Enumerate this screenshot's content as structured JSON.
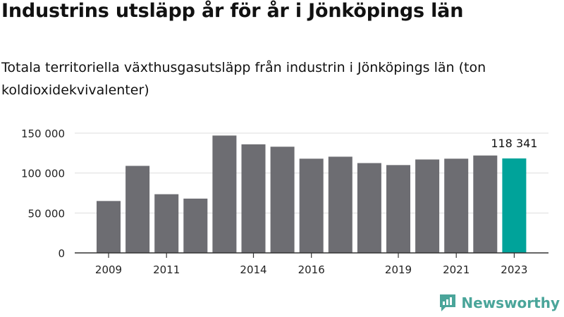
{
  "title": "Industrins utsläpp år för år i Jönköpings län",
  "subtitle": "Totala territoriella växthusgasutsläpp från industrin i Jönköpings län (ton koldioxidekvivalenter)",
  "brand": "Newsworthy",
  "colors": {
    "bar": "#6d6d72",
    "highlight": "#00a39a",
    "grid": "#dddddd",
    "axis": "#333333",
    "brand": "#4aa59a"
  },
  "chart_data": {
    "type": "bar",
    "title": "Industrins utsläpp år för år i Jönköpings län",
    "subtitle": "Totala territoriella växthusgasutsläpp från industrin i Jönköpings län (ton koldioxidekvivalenter)",
    "categories": [
      2009,
      2010,
      2011,
      2012,
      2013,
      2014,
      2015,
      2016,
      2017,
      2018,
      2019,
      2020,
      2021,
      2022,
      2023
    ],
    "values": [
      65000,
      109000,
      73500,
      68000,
      147000,
      136000,
      133000,
      118000,
      120500,
      112500,
      110000,
      117000,
      118000,
      122000,
      118341
    ],
    "x_tick_labels": [
      "2009",
      "2011",
      "2014",
      "2016",
      "2019",
      "2021",
      "2023"
    ],
    "x_tick_years": [
      2009,
      2011,
      2014,
      2016,
      2019,
      2021,
      2023
    ],
    "y_ticks": [
      0,
      50000,
      100000,
      150000
    ],
    "y_tick_labels": [
      "0",
      "50 000",
      "100 000",
      "150 000"
    ],
    "ylim": [
      0,
      150000
    ],
    "highlight_index": 14,
    "highlight_label": "118 341",
    "grid": true
  }
}
